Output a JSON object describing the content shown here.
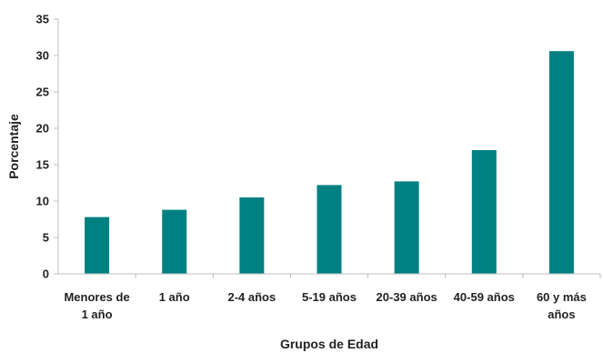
{
  "chart_data": {
    "type": "bar",
    "title": "",
    "xlabel": "Grupos de Edad",
    "ylabel": "Porcentaje",
    "categories": [
      [
        "Menores de",
        "1 año"
      ],
      [
        "1 año"
      ],
      [
        "2-4 años"
      ],
      [
        "5-19 años"
      ],
      [
        "20-39 años"
      ],
      [
        "40-59 años"
      ],
      [
        "60 y más",
        "años"
      ]
    ],
    "values": [
      7.8,
      8.8,
      10.5,
      12.2,
      12.7,
      17.0,
      30.6
    ],
    "ylim": [
      0,
      35
    ],
    "yticks": [
      "0",
      "5",
      "10",
      "15",
      "20",
      "25",
      "30",
      "35"
    ],
    "grid": false,
    "legend": "none",
    "bar_color": "#008080"
  }
}
